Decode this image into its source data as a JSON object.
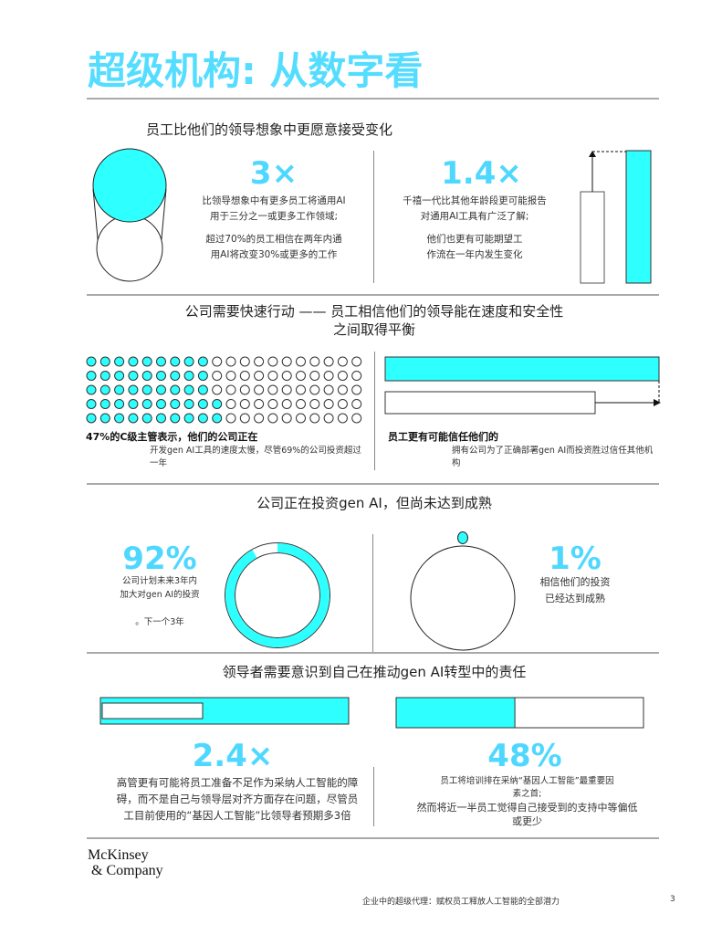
{
  "title": "超级机构: 从数字看",
  "colors": {
    "accent": "#2effff",
    "title": "#55ddff"
  },
  "s1": {
    "heading": "员工比他们的领导想象中更愿意接受变化",
    "left": {
      "stat": "3×",
      "text1": [
        "比领导想象中有更多员工将通用AI",
        "用于三分之一或更多工作领域;"
      ],
      "text2": [
        "超过70%的员工相信在两年内通",
        "用AI将改变30%或更多的工作"
      ]
    },
    "right": {
      "stat": "1.4×",
      "text1": [
        "千禧一代比其他年龄段更可能报告",
        "对通用AI工具有广泛了解;"
      ],
      "text2": [
        "他们也更有可能期望工",
        "作流在一年内发生变化"
      ]
    }
  },
  "s2": {
    "heading": [
      "公司需要快速行动 —— 员工相信他们的领导能在速度和安全性",
      "之间取得平衡"
    ],
    "dots": {
      "total": 100,
      "filled": 47
    },
    "left": {
      "bold": "47%的C级主管表示，他们的公司正在",
      "text": [
        "开发gen AI工具的速度太慢，尽管69%的公司投资超过",
        "一年"
      ]
    },
    "right": {
      "bold": "员工更有可能信任他们的",
      "text": [
        "拥有公司为了正确部署gen AI而投资胜过信任其他机",
        "构"
      ]
    }
  },
  "s3": {
    "heading": "公司正在投资gen AI，但尚未达到成熟",
    "left": {
      "stat": "92%",
      "value": 92,
      "text": [
        "公司计划未来3年内",
        "加大对gen AI的投资"
      ],
      "note": "。下一个3年"
    },
    "right": {
      "stat": "1%",
      "value": 1,
      "text": [
        "相信他们的投资",
        "已经达到成熟"
      ]
    }
  },
  "s4": {
    "heading": "领导者需要意识到自己在推动gen AI转型中的责任",
    "left": {
      "stat": "2.4×",
      "text": [
        "高管更有可能将员工准备不足作为采纳人工智能的障",
        "碍，而不是自己与领导层对齐方面存在问题，尽管员",
        "工目前使用的“基因人工智能”比领导者预期多3倍"
      ]
    },
    "right": {
      "stat": "48%",
      "value": 48,
      "text": [
        "员工将培训排在采纳“基因人工智能”最重要因",
        "素之首;",
        "然而将近一半员工觉得自己接受到的支持中等偏低",
        "或更少"
      ]
    }
  },
  "logo": [
    "McKinsey",
    "& Company"
  ],
  "footer": {
    "text": "企业中的超级代理：赋权员工释放人工智能的全部潜力",
    "page": "3"
  }
}
